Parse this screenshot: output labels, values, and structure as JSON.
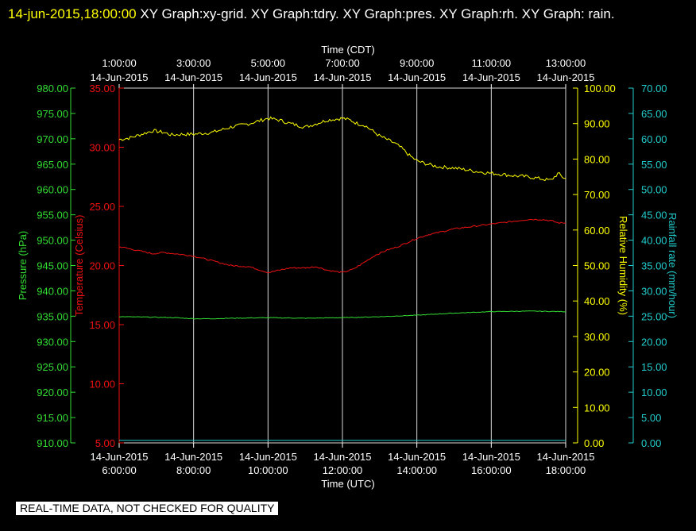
{
  "header": {
    "timestamp": "14-jun-2015,18:00:00",
    "graphs": "  XY Graph:xy-grid.  XY Graph:tdry.  XY Graph:pres.  XY Graph:rh.  XY Graph: rain."
  },
  "disclaimer": "REAL-TIME DATA, NOT CHECKED FOR QUALITY",
  "colors": {
    "background": "#000000",
    "grid": "#d8d8d8",
    "pressure": "#33dd33",
    "temperature": "#ee1111",
    "humidity": "#ffff00",
    "rainfall": "#22cccc"
  },
  "chart_data": {
    "type": "line",
    "grid": true,
    "x_bottom": {
      "label": "Time (UTC)",
      "range_hours": [
        6,
        18
      ],
      "ticks": [
        {
          "hour": 6,
          "date": "14-Jun-2015",
          "time": "6:00:00"
        },
        {
          "hour": 8,
          "date": "14-Jun-2015",
          "time": "8:00:00"
        },
        {
          "hour": 10,
          "date": "14-Jun-2015",
          "time": "10:00:00"
        },
        {
          "hour": 12,
          "date": "14-Jun-2015",
          "time": "12:00:00"
        },
        {
          "hour": 14,
          "date": "14-Jun-2015",
          "time": "14:00:00"
        },
        {
          "hour": 16,
          "date": "14-Jun-2015",
          "time": "16:00:00"
        },
        {
          "hour": 18,
          "date": "14-Jun-2015",
          "time": "18:00:00"
        }
      ]
    },
    "x_top": {
      "label": "Time (CDT)",
      "ticks": [
        {
          "hour": 6,
          "time": "1:00:00",
          "date": "14-Jun-2015"
        },
        {
          "hour": 8,
          "time": "3:00:00",
          "date": "14-Jun-2015"
        },
        {
          "hour": 10,
          "time": "5:00:00",
          "date": "14-Jun-2015"
        },
        {
          "hour": 12,
          "time": "7:00:00",
          "date": "14-Jun-2015"
        },
        {
          "hour": 14,
          "time": "9:00:00",
          "date": "14-Jun-2015"
        },
        {
          "hour": 16,
          "time": "11:00:00",
          "date": "14-Jun-2015"
        },
        {
          "hour": 18,
          "time": "13:00:00",
          "date": "14-Jun-2015"
        }
      ]
    },
    "axes": {
      "pressure": {
        "label": "Pressure (hPa)",
        "range": [
          910,
          980
        ],
        "ticks": [
          "910.00",
          "915.00",
          "920.00",
          "925.00",
          "930.00",
          "935.00",
          "940.00",
          "945.00",
          "950.00",
          "955.00",
          "960.00",
          "965.00",
          "970.00",
          "975.00",
          "980.00"
        ]
      },
      "temperature": {
        "label": "Temperature (Celsius)",
        "range": [
          5,
          35
        ],
        "ticks": [
          "5.00",
          "10.00",
          "15.00",
          "20.00",
          "25.00",
          "30.00",
          "35.00"
        ]
      },
      "humidity": {
        "label": "Relative Humidity (%)",
        "range": [
          0,
          100
        ],
        "ticks": [
          "0.00",
          "10.00",
          "20.00",
          "30.00",
          "40.00",
          "50.00",
          "60.00",
          "70.00",
          "80.00",
          "90.00",
          "100.00"
        ]
      },
      "rainfall": {
        "label": "Rainfall rate (mm/hour)",
        "range": [
          0,
          70
        ],
        "ticks": [
          "0.00",
          "5.00",
          "10.00",
          "15.00",
          "20.00",
          "25.00",
          "30.00",
          "35.00",
          "40.00",
          "45.00",
          "50.00",
          "55.00",
          "60.00",
          "65.00",
          "70.00"
        ]
      }
    },
    "series": [
      {
        "axis": "humidity",
        "color_key": "humidity",
        "noise": 0.5,
        "x": [
          6.0,
          6.3,
          6.6,
          6.9,
          7.2,
          7.4,
          7.7,
          8.0,
          8.5,
          9.0,
          9.5,
          10.0,
          10.3,
          10.6,
          11.0,
          11.3,
          11.6,
          12.0,
          12.2,
          12.4,
          12.6,
          12.8,
          13.0,
          13.2,
          13.4,
          13.6,
          13.8,
          14.0,
          14.3,
          14.6,
          15.0,
          15.3,
          15.6,
          16.0,
          16.3,
          16.6,
          17.0,
          17.3,
          17.6,
          17.8,
          17.9,
          18.0
        ],
        "y": [
          85.5,
          86,
          87,
          88,
          87.5,
          86.8,
          87,
          87,
          87.5,
          89,
          90,
          91.5,
          91,
          90,
          89,
          90,
          91,
          91.5,
          91,
          90,
          89.5,
          88,
          86.5,
          85.5,
          84.5,
          83,
          81,
          79.5,
          78.5,
          77.8,
          77.5,
          77,
          76.5,
          76,
          75.7,
          75.3,
          75,
          74.5,
          74,
          76,
          75,
          74.5
        ]
      },
      {
        "axis": "temperature",
        "color_key": "temperature",
        "noise": 0.06,
        "x": [
          6.0,
          6.3,
          6.6,
          6.9,
          7.2,
          7.5,
          8.0,
          8.5,
          9.0,
          9.5,
          9.8,
          10.0,
          10.3,
          10.6,
          11.0,
          11.3,
          11.6,
          12.0,
          12.3,
          12.6,
          12.9,
          13.2,
          13.5,
          14.0,
          14.3,
          14.6,
          15.0,
          15.5,
          16.0,
          16.5,
          17.0,
          17.3,
          17.6,
          17.8,
          18.0
        ],
        "y": [
          21.6,
          21.4,
          21.2,
          21.0,
          21.1,
          21.0,
          20.8,
          20.4,
          20.0,
          19.9,
          19.6,
          19.4,
          19.6,
          19.8,
          19.8,
          19.9,
          19.6,
          19.4,
          19.7,
          20.3,
          20.9,
          21.3,
          21.6,
          22.3,
          22.6,
          22.8,
          23.1,
          23.3,
          23.5,
          23.7,
          23.9,
          23.9,
          23.8,
          23.6,
          23.6
        ]
      },
      {
        "axis": "pressure",
        "color_key": "pressure",
        "noise": 0.06,
        "x": [
          6.0,
          7.0,
          7.5,
          8.0,
          8.5,
          9.0,
          10.0,
          11.0,
          12.0,
          13.0,
          14.0,
          15.0,
          16.0,
          17.0,
          18.0
        ],
        "y": [
          934.9,
          934.8,
          934.7,
          934.5,
          934.5,
          934.6,
          934.7,
          934.6,
          934.7,
          934.9,
          935.2,
          935.6,
          935.9,
          936.0,
          935.9
        ]
      },
      {
        "axis": "rainfall",
        "color_key": "rainfall",
        "noise": 0,
        "x": [
          6.0,
          18.0
        ],
        "y": [
          0.5,
          0.5
        ]
      }
    ]
  }
}
